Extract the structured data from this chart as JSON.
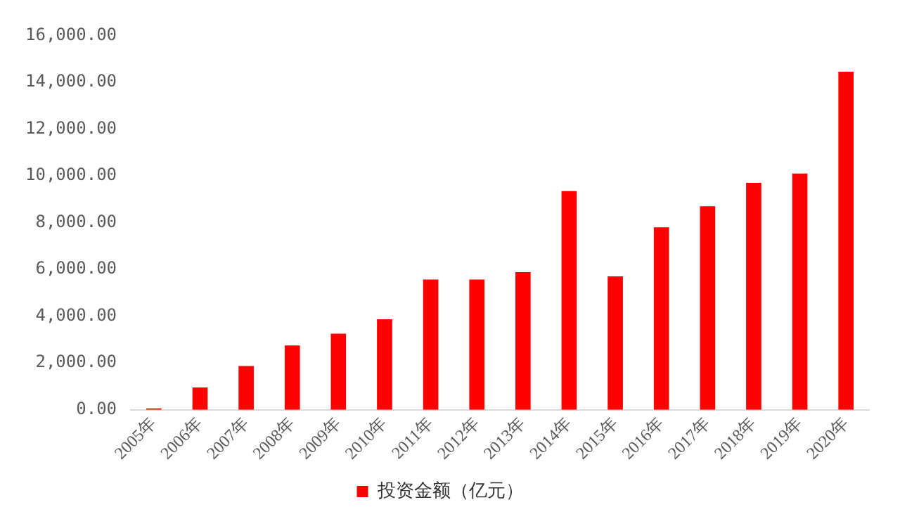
{
  "chart_data": {
    "type": "bar",
    "categories": [
      "2005年",
      "2006年",
      "2007年",
      "2008年",
      "2009年",
      "2010年",
      "2011年",
      "2012年",
      "2013年",
      "2014年",
      "2015年",
      "2016年",
      "2017年",
      "2018年",
      "2019年",
      "2020年"
    ],
    "series": [
      {
        "name": "投资金额（亿元）",
        "color": "#ff0000",
        "values": [
          60,
          950,
          1870,
          2750,
          3250,
          3870,
          5570,
          5570,
          5880,
          9350,
          5700,
          7800,
          8700,
          9700,
          10100,
          14450
        ]
      }
    ],
    "ylim": [
      0,
      16000
    ],
    "yticks": [
      {
        "value": 0,
        "label": "0.00"
      },
      {
        "value": 2000,
        "label": "2,000.00"
      },
      {
        "value": 4000,
        "label": "4,000.00"
      },
      {
        "value": 6000,
        "label": "6,000.00"
      },
      {
        "value": 8000,
        "label": "8,000.00"
      },
      {
        "value": 10000,
        "label": "10,000.00"
      },
      {
        "value": 12000,
        "label": "12,000.00"
      },
      {
        "value": 14000,
        "label": "14,000.00"
      },
      {
        "value": 16000,
        "label": "16,000.00"
      }
    ],
    "grid": false,
    "legend": "bottom"
  }
}
